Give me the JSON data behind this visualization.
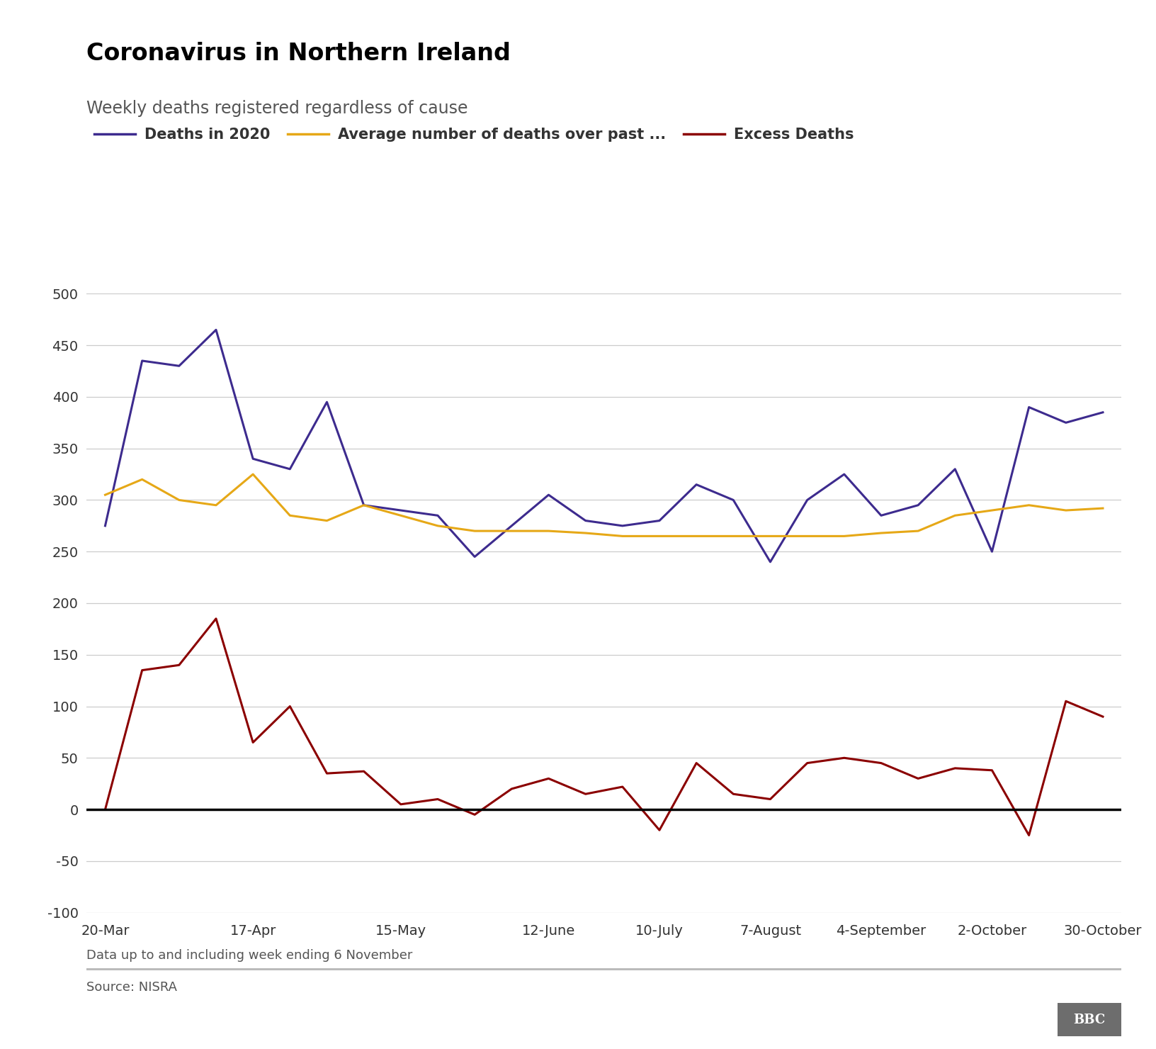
{
  "title": "Coronavirus in Northern Ireland",
  "subtitle": "Weekly deaths registered regardless of cause",
  "note": "Data up to and including week ending 6 November",
  "source": "Source: NISRA",
  "x_labels": [
    "20-Mar",
    "17-Apr",
    "15-May",
    "12-June",
    "10-July",
    "7-August",
    "4-September",
    "2-October",
    "30-October"
  ],
  "x_label_indices": [
    0,
    4,
    8,
    12,
    15,
    18,
    21,
    24,
    27
  ],
  "deaths_2020": [
    275,
    435,
    430,
    465,
    340,
    330,
    395,
    295,
    290,
    285,
    245,
    275,
    305,
    280,
    275,
    280,
    315,
    300,
    240,
    300,
    325,
    285,
    295,
    330,
    250,
    390,
    375,
    385
  ],
  "avg_deaths": [
    305,
    320,
    300,
    295,
    325,
    285,
    280,
    295,
    285,
    275,
    270,
    270,
    270,
    268,
    265,
    265,
    265,
    265,
    265,
    265,
    265,
    268,
    270,
    285,
    290,
    295,
    290,
    292
  ],
  "excess_deaths": [
    0,
    135,
    140,
    185,
    65,
    100,
    35,
    37,
    5,
    10,
    -5,
    20,
    30,
    15,
    22,
    -20,
    45,
    15,
    10,
    45,
    50,
    45,
    30,
    40,
    38,
    -25,
    105,
    90
  ],
  "line_color_deaths": "#3d2b8e",
  "line_color_avg": "#e6a817",
  "line_color_excess": "#8b0000",
  "zero_line_color": "#000000",
  "grid_color": "#cccccc",
  "background_color": "#ffffff",
  "title_fontsize": 24,
  "subtitle_fontsize": 17,
  "legend_fontsize": 15,
  "axis_fontsize": 14,
  "note_fontsize": 13,
  "ylim": [
    -100,
    500
  ],
  "yticks": [
    -100,
    -50,
    0,
    50,
    100,
    150,
    200,
    250,
    300,
    350,
    400,
    450,
    500
  ],
  "legend_labels": [
    "Deaths in 2020",
    "Average number of deaths over past ...",
    "Excess Deaths"
  ]
}
